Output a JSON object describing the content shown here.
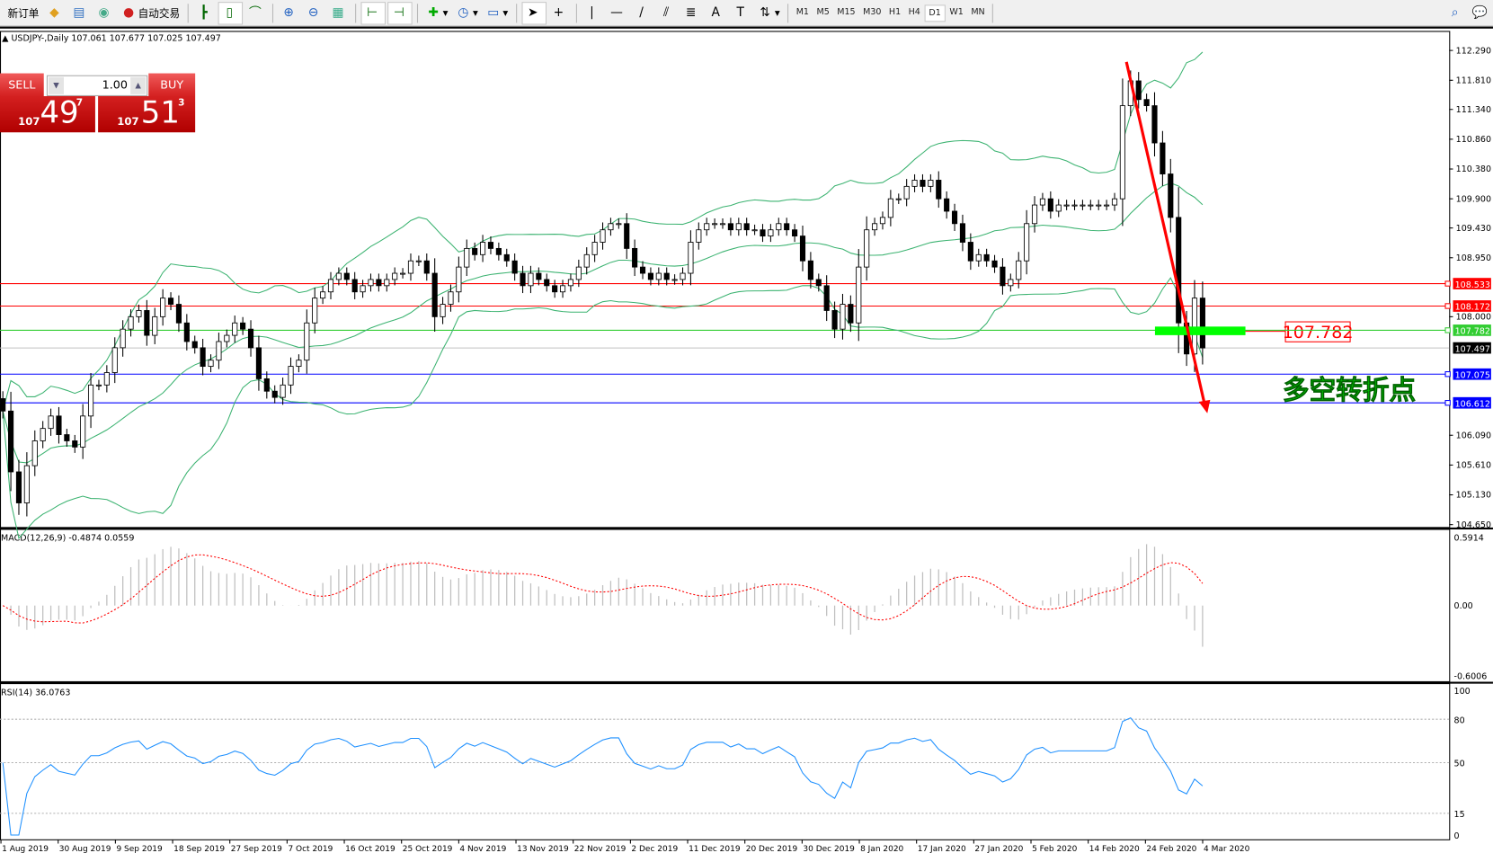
{
  "toolbar": {
    "new_order": "新订单",
    "auto_trading": "自动交易",
    "timeframes": [
      "M1",
      "M5",
      "M15",
      "M30",
      "H1",
      "H4",
      "D1",
      "W1",
      "MN"
    ],
    "active_timeframe": "D1"
  },
  "chart_header": "USDJPY-,Daily  107.061 107.677 107.025 107.497",
  "trade_panel": {
    "sell_label": "SELL",
    "buy_label": "BUY",
    "lot": "1.00",
    "sell_small": "107",
    "sell_main": "49",
    "sell_sup": "7",
    "buy_small": "107",
    "buy_main": "51",
    "buy_sup": "3"
  },
  "price_axis": [
    "112.290",
    "111.810",
    "111.340",
    "110.860",
    "110.380",
    "109.900",
    "109.430",
    "108.950",
    "108.000",
    "106.090",
    "105.610",
    "105.130",
    "104.650"
  ],
  "levels": [
    {
      "price": "108.533",
      "color": "#ff0000"
    },
    {
      "price": "108.172",
      "color": "#ff0000"
    },
    {
      "price": "107.782",
      "color": "#32cd32"
    },
    {
      "price": "107.497",
      "color": "#000000",
      "line": "#c0c0c0"
    },
    {
      "price": "107.075",
      "color": "#0000ff"
    },
    {
      "price": "106.612",
      "color": "#0000ff"
    }
  ],
  "annotations": {
    "price_callout": "107.782",
    "turning_point": "多空转折点"
  },
  "macd": {
    "label": "MACD(12,26,9) -0.4874 0.0559",
    "axis": [
      "0.5914",
      "0.00",
      "-0.6006"
    ]
  },
  "rsi": {
    "label": "RSI(14) 36.0763",
    "axis": [
      "100",
      "80",
      "50",
      "15",
      "0"
    ]
  },
  "dates": [
    "1 Aug 2019",
    "30 Aug 2019",
    "9 Sep 2019",
    "18 Sep 2019",
    "27 Sep 2019",
    "7 Oct 2019",
    "16 Oct 2019",
    "25 Oct 2019",
    "4 Nov 2019",
    "13 Nov 2019",
    "22 Nov 2019",
    "2 Dec 2019",
    "11 Dec 2019",
    "20 Dec 2019",
    "30 Dec 2019",
    "8 Jan 2020",
    "17 Jan 2020",
    "27 Jan 2020",
    "5 Feb 2020",
    "14 Feb 2020",
    "24 Feb 2020",
    "4 Mar 2020"
  ],
  "colors": {
    "bands": "#3cb371",
    "macd_hist": "#c0c0c0",
    "macd_signal": "#ff0000",
    "rsi": "#1e90ff",
    "trend_arrow": "#ff0000",
    "zone": "#00ff00"
  },
  "chart_data": {
    "type": "candlestick",
    "symbol": "USDJPY-",
    "period": "Daily",
    "ylim": [
      104.65,
      112.29
    ],
    "indicators": [
      "Bollinger Bands(20,2)",
      "MACD(12,26,9)",
      "RSI(14)"
    ],
    "close": [
      106.48,
      105.5,
      105.0,
      105.6,
      106.0,
      106.2,
      106.4,
      106.1,
      106.0,
      105.9,
      106.4,
      106.9,
      106.9,
      107.1,
      107.5,
      107.8,
      108.0,
      108.1,
      107.7,
      108.0,
      108.3,
      108.2,
      107.9,
      107.6,
      107.5,
      107.2,
      107.3,
      107.6,
      107.7,
      107.9,
      107.8,
      107.5,
      107.0,
      106.8,
      106.7,
      106.9,
      107.2,
      107.3,
      107.9,
      108.3,
      108.4,
      108.6,
      108.7,
      108.6,
      108.4,
      108.5,
      108.6,
      108.5,
      108.6,
      108.7,
      108.7,
      108.9,
      108.9,
      108.7,
      108.0,
      108.2,
      108.4,
      108.8,
      109.1,
      109.0,
      109.2,
      109.1,
      109.0,
      108.9,
      108.7,
      108.5,
      108.7,
      108.6,
      108.5,
      108.4,
      108.5,
      108.6,
      108.8,
      109.0,
      109.2,
      109.4,
      109.5,
      109.5,
      109.1,
      108.8,
      108.7,
      108.6,
      108.7,
      108.6,
      108.6,
      108.7,
      109.2,
      109.4,
      109.5,
      109.5,
      109.5,
      109.4,
      109.5,
      109.4,
      109.4,
      109.3,
      109.4,
      109.5,
      109.4,
      109.3,
      108.9,
      108.6,
      108.5,
      108.1,
      107.8,
      108.2,
      107.9,
      108.8,
      109.4,
      109.5,
      109.6,
      109.9,
      109.9,
      110.1,
      110.2,
      110.1,
      110.2,
      109.9,
      109.7,
      109.5,
      109.2,
      108.9,
      109.0,
      108.9,
      108.8,
      108.5,
      108.6,
      108.9,
      109.5,
      109.8,
      109.9,
      109.7,
      109.8,
      109.8,
      109.8,
      109.8,
      109.8,
      109.8,
      109.8,
      109.9,
      111.4,
      111.8,
      111.5,
      111.4,
      110.8,
      110.3,
      109.6,
      107.9,
      107.4,
      108.3,
      107.497
    ]
  }
}
